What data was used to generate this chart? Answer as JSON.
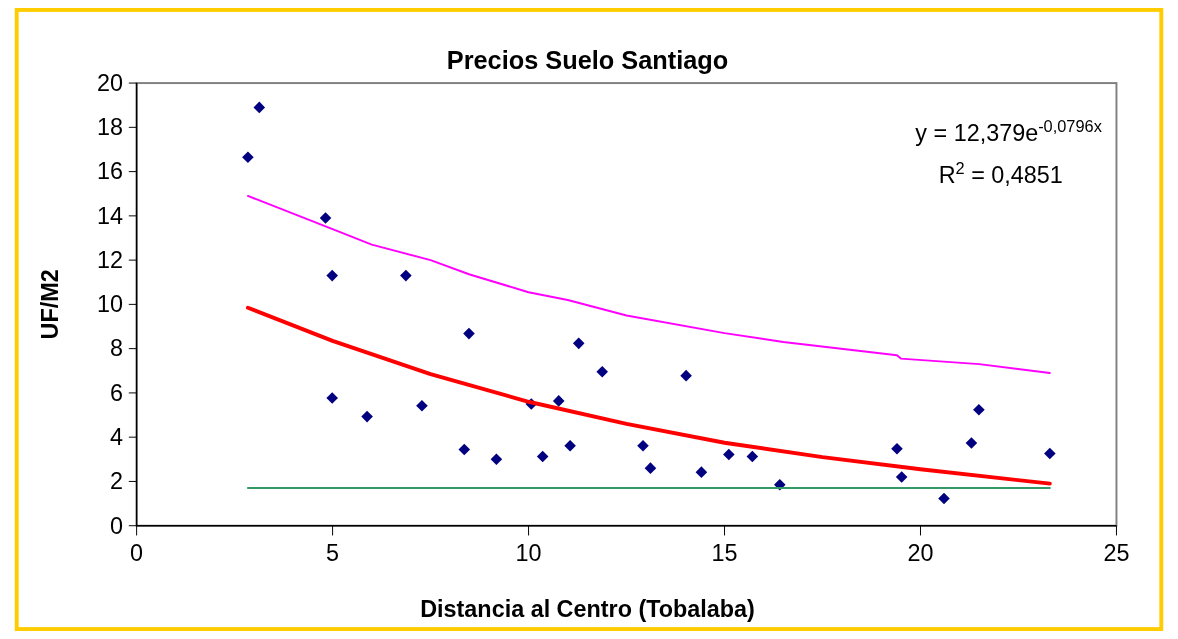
{
  "chart_data": {
    "type": "scatter",
    "title": "Precios Suelo Santiago",
    "xlabel": "Distancia al Centro (Tobalaba)",
    "ylabel": "UF/M2",
    "xlim": [
      0,
      25
    ],
    "xticks": [
      0,
      5,
      10,
      15,
      20,
      25
    ],
    "ylim": [
      0,
      20
    ],
    "yticks": [
      0,
      2,
      4,
      6,
      8,
      10,
      12,
      14,
      16,
      18,
      20
    ],
    "grid": false,
    "annotations": [
      "y = 12,379e$^{-0,0796x}$",
      "R$^{2}$ = 0,4851"
    ],
    "series": [
      {
        "color": "#000080",
        "marker": "diamond",
        "x": [
          2.84,
          3.13,
          4.82,
          4.99,
          4.99,
          5.88,
          6.87,
          7.28,
          8.36,
          8.48,
          9.18,
          10.07,
          10.36,
          10.77,
          11.06,
          11.28,
          11.88,
          12.92,
          13.11,
          14.02,
          14.41,
          15.11,
          15.71,
          16.41,
          19.4,
          19.52,
          20.6,
          21.3,
          21.49,
          23.3
        ],
        "values": [
          16.65,
          18.9,
          13.9,
          11.3,
          5.77,
          4.93,
          11.3,
          5.42,
          3.44,
          8.68,
          3.0,
          5.5,
          3.13,
          5.64,
          3.61,
          8.24,
          6.96,
          3.61,
          2.6,
          6.78,
          2.42,
          3.22,
          3.13,
          1.85,
          3.48,
          2.2,
          1.23,
          3.74,
          5.24,
          3.26
        ]
      },
      {
        "type": "line",
        "color": "#ff00ff",
        "marker": "none",
        "line_style": "solid",
        "x": [
          2.84,
          5,
          6,
          7.5,
          8.5,
          10,
          11,
          12.5,
          15,
          16.5,
          19.4,
          19.5,
          21.5,
          23.3
        ],
        "values": [
          14.9,
          13.4,
          12.7,
          12.0,
          11.35,
          10.55,
          10.2,
          9.5,
          8.7,
          8.3,
          7.7,
          7.55,
          7.3,
          6.9
        ]
      },
      {
        "type": "line",
        "color": "#ff0000",
        "marker": "none",
        "line_style": "solid",
        "x": [
          2.84,
          5,
          7.5,
          10,
          12.5,
          15,
          17.5,
          20,
          23.3
        ],
        "values": [
          9.85,
          8.35,
          6.85,
          5.6,
          4.6,
          3.75,
          3.1,
          2.55,
          1.9
        ]
      },
      {
        "type": "line",
        "color": "#339966",
        "marker": "none",
        "line_style": "solid",
        "x": [
          2.84,
          23.3
        ],
        "values": [
          1.7,
          1.7
        ]
      }
    ]
  }
}
